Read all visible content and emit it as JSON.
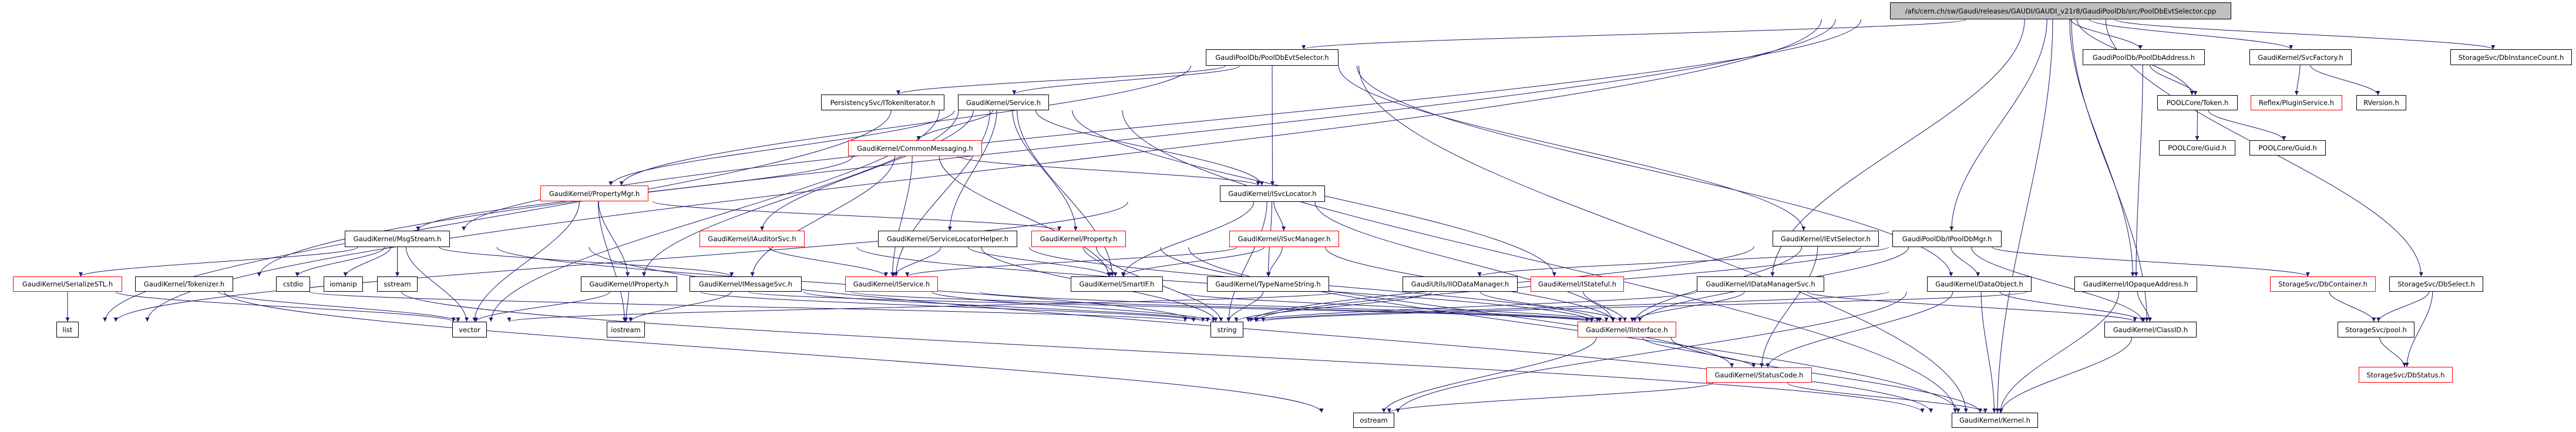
{
  "graph_type": "include-dependency-graph",
  "colors": {
    "edge": "#191970",
    "root_fill": "#bfbfbf",
    "truncated_border": "#ff0000",
    "normal_border": "#000000"
  },
  "nodes": {
    "root": {
      "label": "/afs/cern.ch/sw/Gaudi/releases/GAUDI/GAUDI_v21r8/GaudiPoolDb/src/PoolDbEvtSelector.cpp",
      "border": "black",
      "root": true
    },
    "pdes": {
      "label": "GaudiPoolDb/PoolDbEvtSelector.h",
      "border": "black"
    },
    "pdaddr": {
      "label": "GaudiPoolDb/PoolDbAddress.h",
      "border": "black"
    },
    "svcfac": {
      "label": "GaudiKernel/SvcFactory.h",
      "border": "black"
    },
    "dbinst": {
      "label": "StorageSvc/DbInstanceCount.h",
      "border": "black"
    },
    "tokit": {
      "label": "PersistencySvc/ITokenIterator.h",
      "border": "black"
    },
    "service": {
      "label": "GaudiKernel/Service.h",
      "border": "black"
    },
    "token": {
      "label": "POOLCore/Token.h",
      "border": "black"
    },
    "plugin": {
      "label": "Reflex/PluginService.h",
      "border": "red"
    },
    "rversion": {
      "label": "RVersion.h",
      "border": "black"
    },
    "commsg": {
      "label": "GaudiKernel/CommonMessaging.h",
      "border": "red"
    },
    "guid1": {
      "label": "POOLCore/Guid.h",
      "border": "black"
    },
    "guid2": {
      "label": "POOLCore/Guid.h",
      "border": "black"
    },
    "propmgr": {
      "label": "GaudiKernel/PropertyMgr.h",
      "border": "red"
    },
    "isvcloc": {
      "label": "GaudiKernel/ISvcLocator.h",
      "border": "black"
    },
    "msgstream": {
      "label": "GaudiKernel/MsgStream.h",
      "border": "black"
    },
    "iauditor": {
      "label": "GaudiKernel/IAuditorSvc.h",
      "border": "red"
    },
    "slhelper": {
      "label": "GaudiKernel/ServiceLocatorHelper.h",
      "border": "black"
    },
    "property": {
      "label": "GaudiKernel/Property.h",
      "border": "red"
    },
    "isvcmgr": {
      "label": "GaudiKernel/ISvcManager.h",
      "border": "red"
    },
    "ievtsel": {
      "label": "GaudiKernel/IEvtSelector.h",
      "border": "black"
    },
    "ipooldbmgr": {
      "label": "GaudiPoolDb/IPoolDbMgr.h",
      "border": "black"
    },
    "serialize": {
      "label": "GaudiKernel/SerializeSTL.h",
      "border": "red"
    },
    "tokenizer": {
      "label": "GaudiKernel/Tokenizer.h",
      "border": "black"
    },
    "cstdio": {
      "label": "cstdio",
      "border": "black"
    },
    "iomanip": {
      "label": "iomanip",
      "border": "black"
    },
    "sstream": {
      "label": "sstream",
      "border": "black"
    },
    "iproperty": {
      "label": "GaudiKernel/IProperty.h",
      "border": "black"
    },
    "imsgsvc": {
      "label": "GaudiKernel/IMessageSvc.h",
      "border": "black"
    },
    "iservice": {
      "label": "GaudiKernel/IService.h",
      "border": "red"
    },
    "smartif": {
      "label": "GaudiKernel/SmartIF.h",
      "border": "black"
    },
    "typename": {
      "label": "GaudiKernel/TypeNameString.h",
      "border": "black"
    },
    "iiodm": {
      "label": "GaudiUtils/IIODataManager.h",
      "border": "black"
    },
    "istateful": {
      "label": "GaudiKernel/IStateful.h",
      "border": "red"
    },
    "idms": {
      "label": "GaudiKernel/IDataManagerSvc.h",
      "border": "black"
    },
    "dataobj": {
      "label": "GaudiKernel/DataObject.h",
      "border": "black"
    },
    "iopaque": {
      "label": "GaudiKernel/IOpaqueAddress.h",
      "border": "black"
    },
    "dbcont": {
      "label": "StorageSvc/DbContainer.h",
      "border": "red"
    },
    "dbselect": {
      "label": "StorageSvc/DbSelect.h",
      "border": "black"
    },
    "list": {
      "label": "list",
      "border": "black"
    },
    "vector": {
      "label": "vector",
      "border": "black"
    },
    "iostream": {
      "label": "iostream",
      "border": "black"
    },
    "string": {
      "label": "string",
      "border": "black"
    },
    "iinterface": {
      "label": "GaudiKernel/IInterface.h",
      "border": "red"
    },
    "classid": {
      "label": "GaudiKernel/ClassID.h",
      "border": "black"
    },
    "pool": {
      "label": "StorageSvc/pool.h",
      "border": "black"
    },
    "statuscode": {
      "label": "GaudiKernel/StatusCode.h",
      "border": "red"
    },
    "dbstatus": {
      "label": "StorageSvc/DbStatus.h",
      "border": "red"
    },
    "ostream": {
      "label": "ostream",
      "border": "black"
    },
    "kernel": {
      "label": "GaudiKernel/Kernel.h",
      "border": "black"
    }
  },
  "edges": [
    [
      "root",
      "pdes"
    ],
    [
      "root",
      "pdaddr"
    ],
    [
      "root",
      "svcfac"
    ],
    [
      "root",
      "dbinst"
    ],
    [
      "root",
      "token"
    ],
    [
      "root",
      "msgstream"
    ],
    [
      "root",
      "tokenizer"
    ],
    [
      "root",
      "list"
    ],
    [
      "root",
      "idms"
    ],
    [
      "root",
      "ipooldbmgr"
    ],
    [
      "root",
      "iopaque"
    ],
    [
      "root",
      "classid"
    ],
    [
      "root",
      "dbselect"
    ],
    [
      "root",
      "kernel"
    ],
    [
      "pdes",
      "tokit"
    ],
    [
      "pdes",
      "service"
    ],
    [
      "pdes",
      "isvcloc"
    ],
    [
      "pdes",
      "ievtsel"
    ],
    [
      "pdes",
      "kernel"
    ],
    [
      "pdes",
      "propmgr"
    ],
    [
      "pdes",
      "dataobj"
    ],
    [
      "service",
      "commsg"
    ],
    [
      "service",
      "isvcloc"
    ],
    [
      "service",
      "iauditor"
    ],
    [
      "service",
      "slhelper"
    ],
    [
      "service",
      "property"
    ],
    [
      "service",
      "iservice"
    ],
    [
      "service",
      "smartif"
    ],
    [
      "service",
      "propmgr"
    ],
    [
      "service",
      "iproperty"
    ],
    [
      "service",
      "istateful"
    ],
    [
      "service",
      "kernel"
    ],
    [
      "service",
      "vector"
    ],
    [
      "service",
      "list"
    ],
    [
      "commsg",
      "msgstream"
    ],
    [
      "commsg",
      "isvcloc"
    ],
    [
      "commsg",
      "imsgsvc"
    ],
    [
      "commsg",
      "iservice"
    ],
    [
      "commsg",
      "smartif"
    ],
    [
      "isvcloc",
      "isvcmgr"
    ],
    [
      "isvcloc",
      "smartif"
    ],
    [
      "isvcloc",
      "string"
    ],
    [
      "isvcloc",
      "iinterface"
    ],
    [
      "isvcloc",
      "typename"
    ],
    [
      "isvcloc",
      "list"
    ],
    [
      "propmgr",
      "iproperty"
    ],
    [
      "propmgr",
      "property"
    ],
    [
      "propmgr",
      "vector"
    ],
    [
      "propmgr",
      "iostream"
    ],
    [
      "msgstream",
      "serialize"
    ],
    [
      "msgstream",
      "cstdio"
    ],
    [
      "msgstream",
      "iomanip"
    ],
    [
      "msgstream",
      "sstream"
    ],
    [
      "msgstream",
      "vector"
    ],
    [
      "msgstream",
      "imsgsvc"
    ],
    [
      "msgstream",
      "string"
    ],
    [
      "msgstream",
      "kernel"
    ],
    [
      "serialize",
      "list"
    ],
    [
      "serialize",
      "vector"
    ],
    [
      "serialize",
      "ostream"
    ],
    [
      "tokenizer",
      "vector"
    ],
    [
      "tokenizer",
      "string"
    ],
    [
      "tokenizer",
      "kernel"
    ],
    [
      "iproperty",
      "iinterface"
    ],
    [
      "iproperty",
      "vector"
    ],
    [
      "iproperty",
      "iostream"
    ],
    [
      "iproperty",
      "string"
    ],
    [
      "imsgsvc",
      "iinterface"
    ],
    [
      "imsgsvc",
      "iostream"
    ],
    [
      "imsgsvc",
      "string"
    ],
    [
      "iauditor",
      "iservice"
    ],
    [
      "iauditor",
      "iinterface"
    ],
    [
      "slhelper",
      "iservice"
    ],
    [
      "slhelper",
      "smartif"
    ],
    [
      "slhelper",
      "string"
    ],
    [
      "slhelper",
      "iinterface"
    ],
    [
      "property",
      "smartif"
    ],
    [
      "property",
      "string"
    ],
    [
      "property",
      "kernel"
    ],
    [
      "property",
      "statuscode"
    ],
    [
      "isvcmgr",
      "iservice"
    ],
    [
      "isvcmgr",
      "smartif"
    ],
    [
      "isvcmgr",
      "typename"
    ],
    [
      "isvcmgr",
      "iinterface"
    ],
    [
      "typename",
      "string"
    ],
    [
      "smartif",
      "iinterface"
    ],
    [
      "iservice",
      "iinterface"
    ],
    [
      "iservice",
      "string"
    ],
    [
      "ievtsel",
      "iinterface"
    ],
    [
      "ievtsel",
      "statuscode"
    ],
    [
      "ievtsel",
      "string"
    ],
    [
      "iiodm",
      "iinterface"
    ],
    [
      "iiodm",
      "string"
    ],
    [
      "iiodm",
      "vector"
    ],
    [
      "istateful",
      "iinterface"
    ],
    [
      "idms",
      "iinterface"
    ],
    [
      "idms",
      "string"
    ],
    [
      "idms",
      "classid"
    ],
    [
      "dataobj",
      "classid"
    ],
    [
      "dataobj",
      "statuscode"
    ],
    [
      "dataobj",
      "ostream"
    ],
    [
      "dataobj",
      "string"
    ],
    [
      "dataobj",
      "kernel"
    ],
    [
      "iopaque",
      "classid"
    ],
    [
      "iopaque",
      "kernel"
    ],
    [
      "iopaque",
      "string"
    ],
    [
      "ipooldbmgr",
      "iiodm"
    ],
    [
      "ipooldbmgr",
      "dbcont"
    ],
    [
      "ipooldbmgr",
      "classid"
    ],
    [
      "ipooldbmgr",
      "dataobj"
    ],
    [
      "ipooldbmgr",
      "string"
    ],
    [
      "ipooldbmgr",
      "iinterface"
    ],
    [
      "iinterface",
      "statuscode"
    ],
    [
      "iinterface",
      "ostream"
    ],
    [
      "iinterface",
      "kernel"
    ],
    [
      "statuscode",
      "ostream"
    ],
    [
      "statuscode",
      "kernel"
    ],
    [
      "classid",
      "kernel"
    ],
    [
      "dbcont",
      "pool"
    ],
    [
      "dbselect",
      "pool"
    ],
    [
      "dbselect",
      "dbstatus"
    ],
    [
      "pool",
      "dbstatus"
    ],
    [
      "pdaddr",
      "token"
    ],
    [
      "pdaddr",
      "iopaque"
    ],
    [
      "token",
      "guid1"
    ],
    [
      "token",
      "guid2"
    ],
    [
      "svcfac",
      "plugin"
    ],
    [
      "svcfac",
      "rversion"
    ]
  ]
}
